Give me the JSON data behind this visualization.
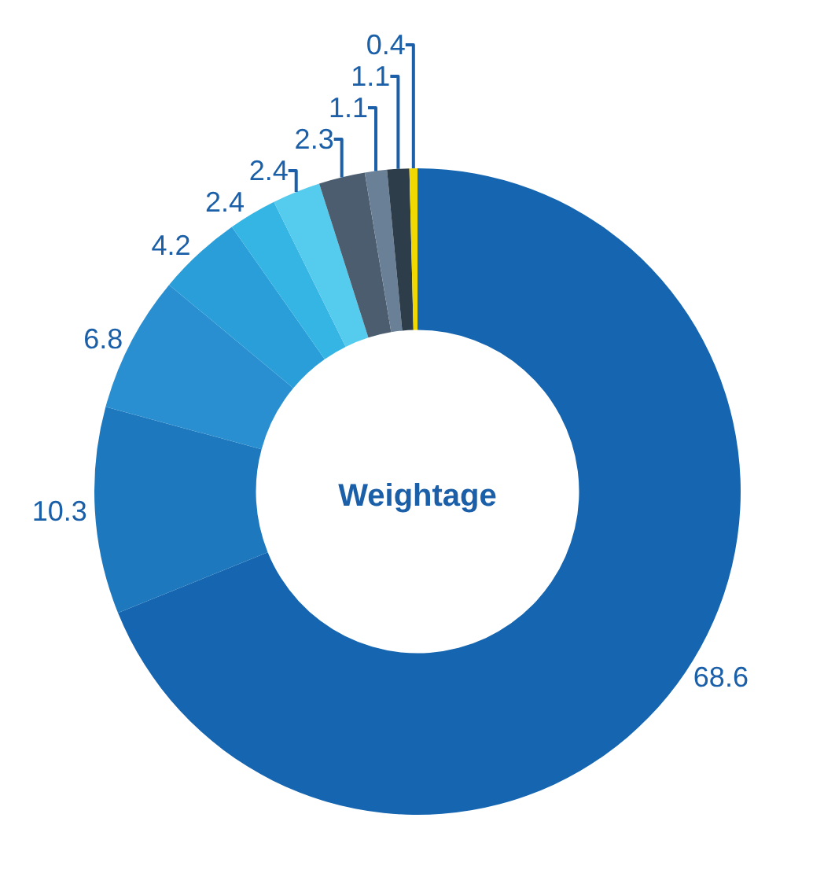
{
  "chart_data": {
    "type": "donut",
    "title": "Weightage",
    "categories": [
      null,
      null,
      null,
      null,
      null,
      null,
      null,
      null,
      null,
      null
    ],
    "values": [
      68.6,
      10.3,
      6.8,
      4.2,
      2.4,
      2.4,
      2.3,
      1.1,
      1.1,
      0.4
    ],
    "colors": [
      "#1565b0",
      "#1e78be",
      "#2a8fd0",
      "#2a9ed8",
      "#35b5e3",
      "#55cbee",
      "#4b5d6e",
      "#6a8096",
      "#2e3d4a",
      "#f0d800"
    ],
    "data_labels": true,
    "legend": false
  }
}
